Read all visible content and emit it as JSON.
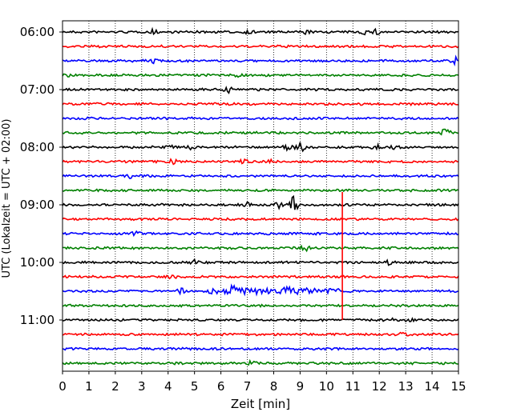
{
  "chart_data": {
    "type": "line",
    "title": "",
    "xlabel": "Zeit  [min]",
    "ylabel": "UTC (Lokalzeit = UTC + 02:00)",
    "xlim": [
      0,
      15
    ],
    "x_ticks": [
      "0",
      "1",
      "2",
      "3",
      "4",
      "5",
      "6",
      "7",
      "8",
      "9",
      "10",
      "11",
      "12",
      "13",
      "14",
      "15"
    ],
    "y_ticks": [
      "06:00",
      "07:00",
      "08:00",
      "09:00",
      "10:00",
      "11:00"
    ],
    "grid": "vertical dotted",
    "trace_colors": [
      "#000000",
      "#ff0000",
      "#0000ff",
      "#008000"
    ],
    "traces": [
      {
        "start": "06:00",
        "color": "#000000"
      },
      {
        "start": "06:15",
        "color": "#ff0000"
      },
      {
        "start": "06:30",
        "color": "#0000ff"
      },
      {
        "start": "06:45",
        "color": "#008000"
      },
      {
        "start": "07:00",
        "color": "#000000"
      },
      {
        "start": "07:15",
        "color": "#ff0000"
      },
      {
        "start": "07:30",
        "color": "#0000ff"
      },
      {
        "start": "07:45",
        "color": "#008000"
      },
      {
        "start": "08:00",
        "color": "#000000"
      },
      {
        "start": "08:15",
        "color": "#ff0000"
      },
      {
        "start": "08:30",
        "color": "#0000ff"
      },
      {
        "start": "08:45",
        "color": "#008000"
      },
      {
        "start": "09:00",
        "color": "#000000"
      },
      {
        "start": "09:15",
        "color": "#ff0000"
      },
      {
        "start": "09:30",
        "color": "#0000ff"
      },
      {
        "start": "09:45",
        "color": "#008000"
      },
      {
        "start": "10:00",
        "color": "#000000"
      },
      {
        "start": "10:15",
        "color": "#ff0000"
      },
      {
        "start": "10:30",
        "color": "#0000ff"
      },
      {
        "start": "10:45",
        "color": "#008000"
      },
      {
        "start": "11:00",
        "color": "#000000"
      },
      {
        "start": "11:15",
        "color": "#ff0000"
      },
      {
        "start": "11:30",
        "color": "#0000ff"
      },
      {
        "start": "11:45",
        "color": "#008000"
      }
    ],
    "events": [
      {
        "trace": "09:15",
        "x": 10.6,
        "note": "large spike spanning into 10:45 trace"
      }
    ]
  }
}
